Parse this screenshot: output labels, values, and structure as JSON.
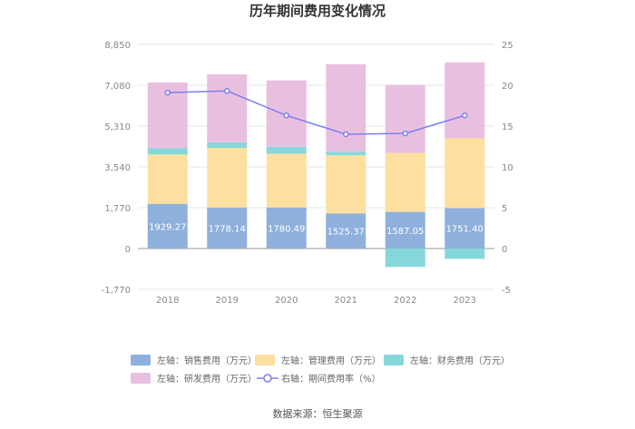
{
  "chart_data": {
    "type": "bar",
    "title": "历年期间费用变化情况",
    "categories": [
      "2018",
      "2019",
      "2020",
      "2021",
      "2022",
      "2023"
    ],
    "left_axis": {
      "ticks": [
        "8,850",
        "7,080",
        "5,310",
        "3,540",
        "1,770",
        "0",
        "-1,770"
      ],
      "ylim": [
        -1770,
        8850
      ]
    },
    "right_axis": {
      "ticks": [
        "25",
        "20",
        "15",
        "10",
        "5",
        "0",
        "-5"
      ],
      "ylim": [
        -5,
        25
      ]
    },
    "series": [
      {
        "name": "左轴：销售费用（万元）",
        "type": "stacked-bar",
        "color": "#8fb0dc",
        "values": [
          1929.27,
          1778.14,
          1780.49,
          1525.37,
          1587.05,
          1751.4
        ],
        "labels": [
          "1929.27",
          "1778.14",
          "1780.49",
          "1525.37",
          "1587.05",
          "1751.40"
        ]
      },
      {
        "name": "左轴：管理费用（万元）",
        "type": "stacked-bar",
        "color": "#fddfa0",
        "values": [
          2150,
          2580,
          2330,
          2520,
          2560,
          3030
        ]
      },
      {
        "name": "左轴：财务费用（万元）",
        "type": "stacked-bar",
        "color": "#86d7da",
        "values": [
          270,
          250,
          300,
          150,
          -800,
          -450
        ]
      },
      {
        "name": "左轴：研发费用（万元）",
        "type": "stacked-bar",
        "color": "#e9bfe0",
        "values": [
          2850,
          2950,
          2880,
          3800,
          2950,
          3290
        ]
      },
      {
        "name": "右轴：期间费用率（%）",
        "type": "line",
        "axis": "right",
        "color": "#7b7ff0",
        "values": [
          19.1,
          19.3,
          16.3,
          14.0,
          14.1,
          16.3
        ]
      }
    ]
  },
  "source": "数据来源：恒生聚源"
}
